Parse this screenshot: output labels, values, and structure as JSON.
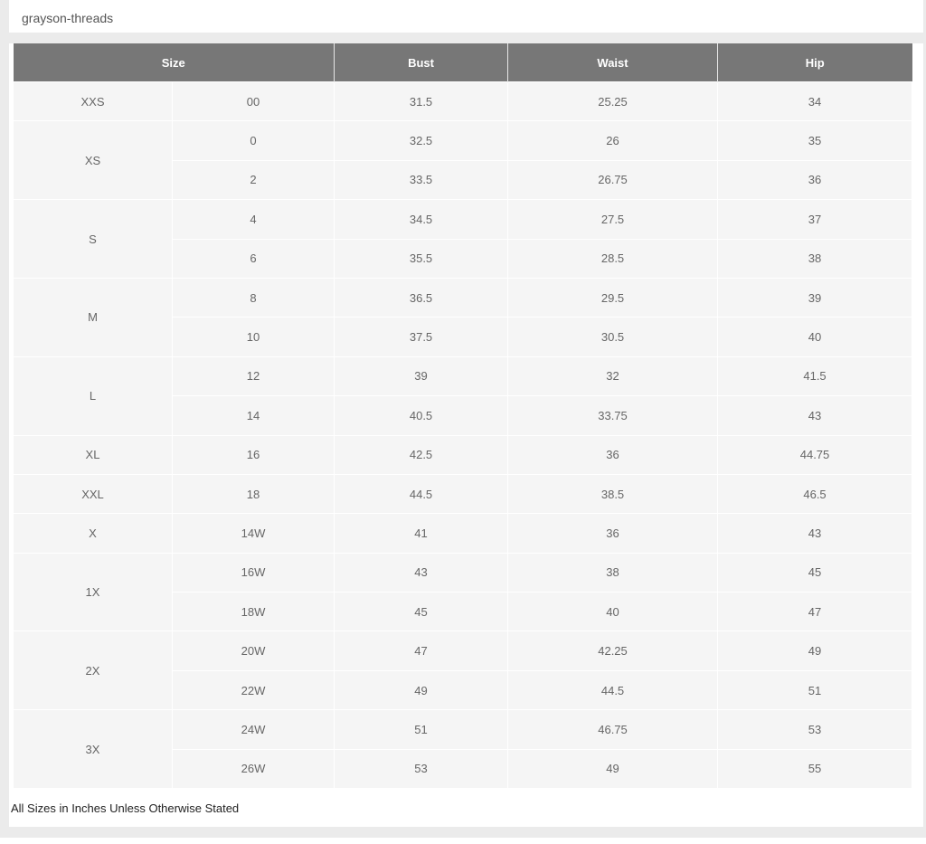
{
  "title": "grayson-threads",
  "headers": [
    "Size",
    "Bust",
    "Waist",
    "Hip"
  ],
  "groups": [
    {
      "label": "XXS",
      "rows": [
        [
          "00",
          "31.5",
          "25.25",
          "34"
        ]
      ]
    },
    {
      "label": "XS",
      "rows": [
        [
          "0",
          "32.5",
          "26",
          "35"
        ],
        [
          "2",
          "33.5",
          "26.75",
          "36"
        ]
      ]
    },
    {
      "label": "S",
      "rows": [
        [
          "4",
          "34.5",
          "27.5",
          "37"
        ],
        [
          "6",
          "35.5",
          "28.5",
          "38"
        ]
      ]
    },
    {
      "label": "M",
      "rows": [
        [
          "8",
          "36.5",
          "29.5",
          "39"
        ],
        [
          "10",
          "37.5",
          "30.5",
          "40"
        ]
      ]
    },
    {
      "label": "L",
      "rows": [
        [
          "12",
          "39",
          "32",
          "41.5"
        ],
        [
          "14",
          "40.5",
          "33.75",
          "43"
        ]
      ]
    },
    {
      "label": "XL",
      "rows": [
        [
          "16",
          "42.5",
          "36",
          "44.75"
        ]
      ]
    },
    {
      "label": "XXL",
      "rows": [
        [
          "18",
          "44.5",
          "38.5",
          "46.5"
        ]
      ]
    },
    {
      "label": "X",
      "rows": [
        [
          "14W",
          "41",
          "36",
          "43"
        ]
      ]
    },
    {
      "label": "1X",
      "rows": [
        [
          "16W",
          "43",
          "38",
          "45"
        ],
        [
          "18W",
          "45",
          "40",
          "47"
        ]
      ]
    },
    {
      "label": "2X",
      "rows": [
        [
          "20W",
          "47",
          "42.25",
          "49"
        ],
        [
          "22W",
          "49",
          "44.5",
          "51"
        ]
      ]
    },
    {
      "label": "3X",
      "rows": [
        [
          "24W",
          "51",
          "46.75",
          "53"
        ],
        [
          "26W",
          "53",
          "49",
          "55"
        ]
      ]
    }
  ],
  "footnote": "All Sizes in Inches Unless Otherwise Stated"
}
